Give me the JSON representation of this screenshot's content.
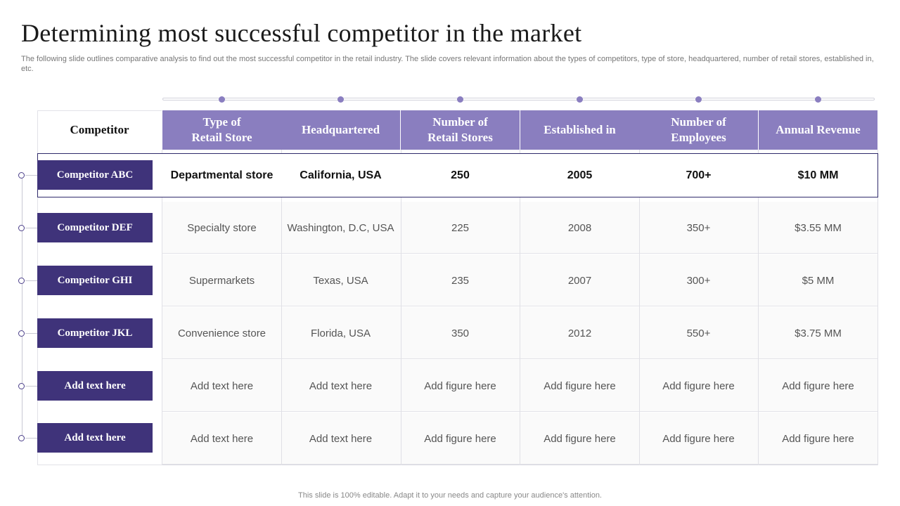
{
  "title": "Determining most successful competitor in the market",
  "subtitle": "The following slide outlines comparative analysis to find out the most successful competitor in the retail industry. The slide covers relevant information about the types of competitors, type of store, headquartered, number of retail stores, established in, etc.",
  "footer": "This slide is 100% editable. Adapt it to your needs and capture your audience's attention.",
  "table": {
    "competitor_header": "Competitor",
    "columns": [
      "Type of\nRetail Store",
      "Headquartered",
      "Number of\nRetail Stores",
      "Established in",
      "Number of\nEmployees",
      "Annual Revenue"
    ],
    "rows": [
      {
        "competitor": "Competitor  ABC",
        "cells": [
          "Departmental store",
          "California, USA",
          "250",
          "2005",
          "700+",
          "$10 MM"
        ],
        "highlighted": true
      },
      {
        "competitor": "Competitor  DEF",
        "cells": [
          "Specialty store",
          "Washington, D.C, USA",
          "225",
          "2008",
          "350+",
          "$3.55 MM"
        ]
      },
      {
        "competitor": "Competitor  GHI",
        "cells": [
          "Supermarkets",
          "Texas, USA",
          "235",
          "2007",
          "300+",
          "$5 MM"
        ]
      },
      {
        "competitor": "Competitor  JKL",
        "cells": [
          "Convenience store",
          "Florida, USA",
          "350",
          "2012",
          "550+",
          "$3.75 MM"
        ]
      },
      {
        "competitor": "Add text here",
        "cells": [
          "Add text here",
          "Add text here",
          "Add figure here",
          "Add figure here",
          "Add figure here",
          "Add figure here"
        ]
      },
      {
        "competitor": "Add text here",
        "cells": [
          "Add text here",
          "Add text here",
          "Add figure here",
          "Add figure here",
          "Add figure here",
          "Add figure here"
        ]
      }
    ]
  },
  "colors": {
    "header_fill": "#8a7ebf",
    "label_fill": "#3f337a",
    "highlight_border": "#2f2a6b"
  }
}
